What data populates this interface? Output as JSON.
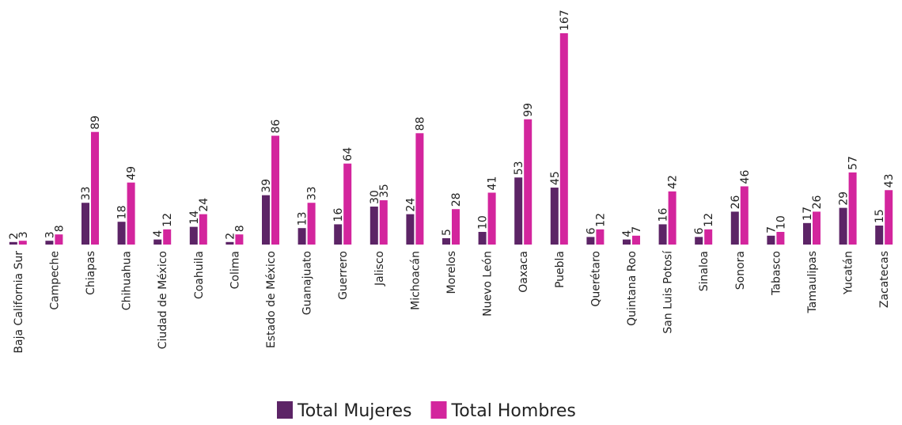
{
  "chart_data": {
    "type": "bar",
    "categories": [
      "Baja California Sur",
      "Campeche",
      "Chiapas",
      "Chihuahua",
      "Ciudad de México",
      "Coahuila",
      "Colima",
      "Estado de México",
      "Guanajuato",
      "Guerrero",
      "Jalisco",
      "Michoacán",
      "Morelos",
      "Nuevo León",
      "Oaxaca",
      "Puebla",
      "Querétaro",
      "Quintana Roo",
      "San Luis Potosí",
      "Sinaloa",
      "Sonora",
      "Tabasco",
      "Tamaulipas",
      "Yucatán",
      "Zacatecas"
    ],
    "series": [
      {
        "name": "Total Mujeres",
        "color": "#5c2466",
        "values": [
          2,
          3,
          33,
          18,
          4,
          14,
          2,
          39,
          13,
          16,
          30,
          24,
          5,
          10,
          53,
          45,
          6,
          4,
          16,
          6,
          26,
          7,
          17,
          29,
          15
        ]
      },
      {
        "name": "Total Hombres",
        "color": "#d3259d",
        "values": [
          3,
          8,
          89,
          49,
          12,
          24,
          8,
          86,
          33,
          64,
          35,
          88,
          28,
          41,
          99,
          167,
          12,
          7,
          42,
          12,
          46,
          10,
          26,
          57,
          43
        ]
      }
    ],
    "legend": "bottom"
  }
}
